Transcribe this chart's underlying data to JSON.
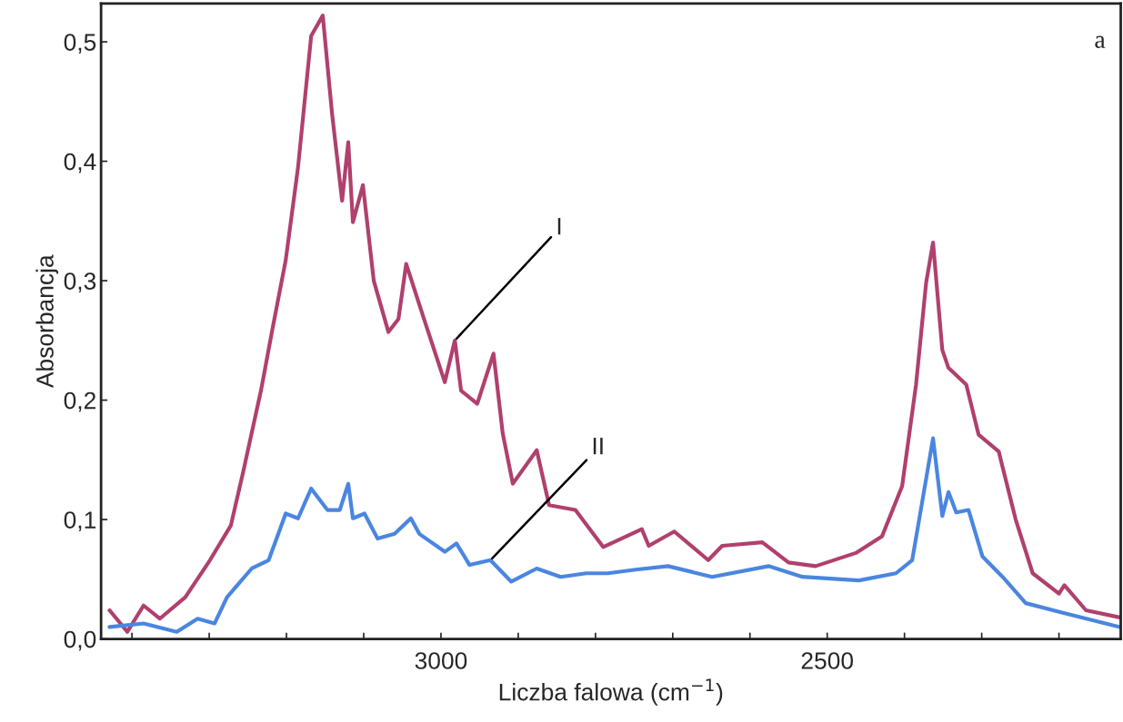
{
  "chart_data": {
    "type": "line",
    "xlabel": "Liczba falowa (cm$^{−1}$)",
    "ylabel": "Absorbancja",
    "annotations": [
      "a",
      {
        "text": "I",
        "x": 2982,
        "y": 0.25
      },
      {
        "text": "II",
        "x": 2936,
        "y": 0.066
      }
    ],
    "series": [
      {
        "color": "#b0406e",
        "x": [
          3429,
          3406,
          3385,
          3364,
          3331,
          3299,
          3272,
          3256,
          3233,
          3218,
          3201,
          3185,
          3168,
          3153,
          3141,
          3128,
          3120,
          3114,
          3101,
          3087,
          3068,
          3055,
          3045,
          3022,
          2995,
          2982,
          2974,
          2953,
          2932,
          2920,
          2907,
          2876,
          2860,
          2826,
          2790,
          2740,
          2731,
          2698,
          2654,
          2636,
          2584,
          2550,
          2515,
          2463,
          2429,
          2403,
          2385,
          2372,
          2363,
          2351,
          2343,
          2320,
          2304,
          2278,
          2256,
          2234,
          2200,
          2193,
          2165,
          2121
        ],
        "values": [
          0.024,
          0.006,
          0.028,
          0.017,
          0.035,
          0.066,
          0.095,
          0.14,
          0.208,
          0.26,
          0.317,
          0.395,
          0.505,
          0.522,
          0.44,
          0.367,
          0.416,
          0.349,
          0.38,
          0.3,
          0.257,
          0.268,
          0.314,
          0.268,
          0.215,
          0.25,
          0.208,
          0.197,
          0.239,
          0.172,
          0.13,
          0.158,
          0.112,
          0.108,
          0.077,
          0.092,
          0.078,
          0.09,
          0.066,
          0.078,
          0.081,
          0.064,
          0.061,
          0.072,
          0.086,
          0.128,
          0.213,
          0.298,
          0.332,
          0.242,
          0.227,
          0.213,
          0.171,
          0.157,
          0.1,
          0.055,
          0.038,
          0.045,
          0.024,
          0.018
        ]
      },
      {
        "color": "#4a86e0",
        "x": [
          3429,
          3385,
          3342,
          3315,
          3293,
          3277,
          3245,
          3223,
          3201,
          3185,
          3168,
          3147,
          3131,
          3120,
          3114,
          3099,
          3082,
          3060,
          3039,
          3028,
          2995,
          2980,
          2963,
          2936,
          2909,
          2876,
          2845,
          2812,
          2784,
          2748,
          2706,
          2649,
          2576,
          2532,
          2459,
          2411,
          2390,
          2377,
          2363,
          2351,
          2343,
          2333,
          2317,
          2299,
          2273,
          2243,
          2195,
          2121
        ],
        "values": [
          0.01,
          0.013,
          0.006,
          0.017,
          0.013,
          0.035,
          0.059,
          0.066,
          0.105,
          0.101,
          0.126,
          0.108,
          0.108,
          0.13,
          0.101,
          0.105,
          0.084,
          0.088,
          0.101,
          0.088,
          0.073,
          0.08,
          0.062,
          0.066,
          0.048,
          0.059,
          0.052,
          0.055,
          0.055,
          0.058,
          0.061,
          0.052,
          0.061,
          0.052,
          0.049,
          0.055,
          0.066,
          0.115,
          0.168,
          0.103,
          0.123,
          0.106,
          0.108,
          0.069,
          0.052,
          0.03,
          0.022,
          0.01
        ]
      }
    ],
    "xlim": [
      3440,
      2120
    ],
    "xticks": [
      {
        "value": 3400,
        "label": null
      },
      {
        "value": 3300,
        "label": null
      },
      {
        "value": 3200,
        "label": null
      },
      {
        "value": 3100,
        "label": null
      },
      3000,
      {
        "value": 2900,
        "label": null
      },
      {
        "value": 2800,
        "label": null
      },
      {
        "value": 2700,
        "label": null
      },
      {
        "value": 2600,
        "label": null
      },
      2500,
      {
        "value": 2400,
        "label": null
      },
      {
        "value": 2300,
        "label": null
      },
      {
        "value": 2200,
        "label": null
      }
    ],
    "ylim": [
      0,
      0.532
    ],
    "yticks": [
      {
        "value": 0,
        "label": "0,0"
      },
      {
        "value": 0.1,
        "label": "0,1"
      },
      {
        "value": 0.2,
        "label": "0,2"
      },
      {
        "value": 0.3,
        "label": "0,3"
      },
      {
        "value": 0.4,
        "label": "0,4"
      },
      {
        "value": 0.5,
        "label": "0,5"
      }
    ],
    "grid": false,
    "legend": false
  }
}
